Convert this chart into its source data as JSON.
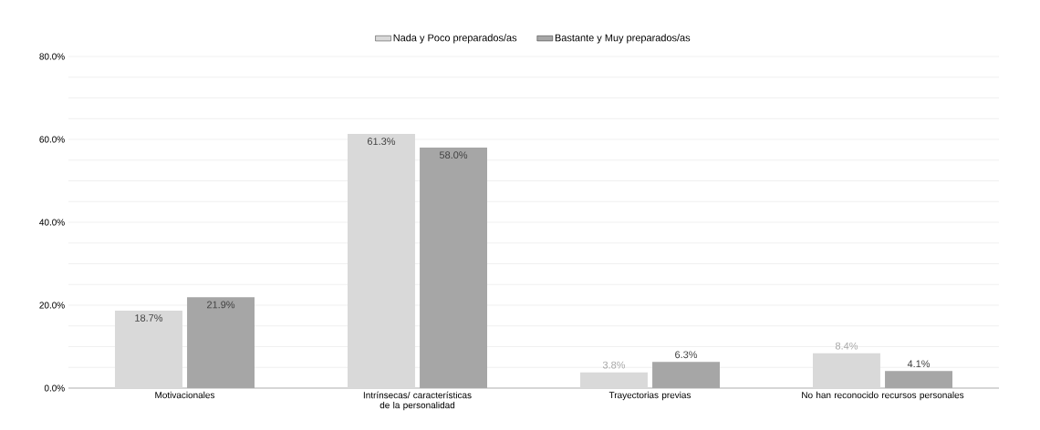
{
  "chart_data": {
    "type": "bar",
    "categories": [
      "Motivacionales",
      "Intrínsecas/ características de la personalidad",
      "Trayectorias previas",
      "No han reconocido recursos personales"
    ],
    "series": [
      {
        "name": "Nada y Poco preparados/as",
        "color": "#d9d9d9",
        "values": [
          18.7,
          61.3,
          3.8,
          8.4
        ],
        "value_labels": [
          "18.7%",
          "61.3%",
          "3.8%",
          "8.4%"
        ]
      },
      {
        "name": "Bastante y Muy preparados/as",
        "color": "#a6a6a6",
        "values": [
          21.9,
          58.0,
          6.3,
          4.1
        ],
        "value_labels": [
          "21.9%",
          "58.0%",
          "6.3%",
          "4.1%"
        ]
      }
    ],
    "ylim": [
      0,
      80
    ],
    "yticks": [
      {
        "value": 0,
        "label": "0.0%"
      },
      {
        "value": 5,
        "label": null
      },
      {
        "value": 10,
        "label": null
      },
      {
        "value": 15,
        "label": null
      },
      {
        "value": 20,
        "label": "20.0%"
      },
      {
        "value": 25,
        "label": null
      },
      {
        "value": 30,
        "label": null
      },
      {
        "value": 35,
        "label": null
      },
      {
        "value": 40,
        "label": "40.0%"
      },
      {
        "value": 45,
        "label": null
      },
      {
        "value": 50,
        "label": null
      },
      {
        "value": 55,
        "label": null
      },
      {
        "value": 60,
        "label": "60.0%"
      },
      {
        "value": 65,
        "label": null
      },
      {
        "value": 70,
        "label": null
      },
      {
        "value": 75,
        "label": null
      },
      {
        "value": 80,
        "label": "80.0%"
      }
    ],
    "grid": "y",
    "legend": "top"
  }
}
